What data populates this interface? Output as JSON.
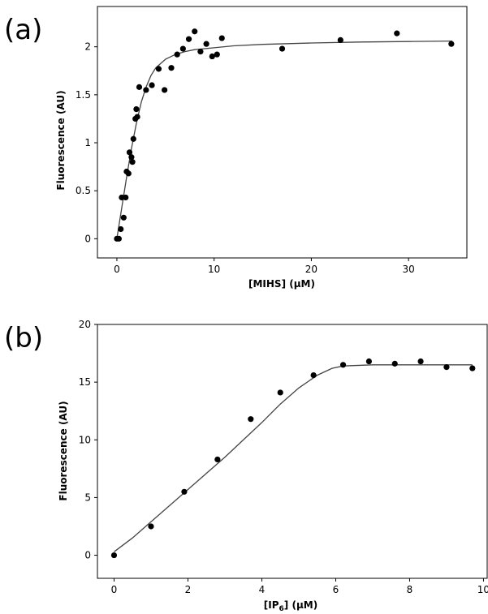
{
  "chart_data": [
    {
      "panel_label": "(a)",
      "type": "scatter",
      "xlabel": "[MIHS] (μM)",
      "ylabel": "Fluorescence (AU)",
      "xlim": [
        -2,
        36
      ],
      "ylim": [
        -0.2,
        2.42
      ],
      "xticks": [
        0,
        10,
        20,
        30
      ],
      "yticks": [
        0,
        0.5,
        1,
        1.5,
        2
      ],
      "ytick_labels": [
        "0",
        "0.5",
        "1",
        "1.5",
        "2"
      ],
      "grid": false,
      "series": [
        {
          "points": [
            [
              0,
              0
            ],
            [
              0.2,
              0
            ],
            [
              0.4,
              0.1
            ],
            [
              0.5,
              0.43
            ],
            [
              0.7,
              0.22
            ],
            [
              0.9,
              0.43
            ],
            [
              1.0,
              0.7
            ],
            [
              1.2,
              0.68
            ],
            [
              1.3,
              0.9
            ],
            [
              1.5,
              0.85
            ],
            [
              1.6,
              0.8
            ],
            [
              1.7,
              1.04
            ],
            [
              1.9,
              1.25
            ],
            [
              2.0,
              1.35
            ],
            [
              2.1,
              1.27
            ],
            [
              2.3,
              1.58
            ],
            [
              3.0,
              1.55
            ],
            [
              3.6,
              1.6
            ],
            [
              4.3,
              1.77
            ],
            [
              4.9,
              1.55
            ],
            [
              5.6,
              1.78
            ],
            [
              6.2,
              1.92
            ],
            [
              6.8,
              1.98
            ],
            [
              7.4,
              2.08
            ],
            [
              8.0,
              2.16
            ],
            [
              8.6,
              1.95
            ],
            [
              9.2,
              2.03
            ],
            [
              9.8,
              1.9
            ],
            [
              10.3,
              1.92
            ],
            [
              10.8,
              2.09
            ],
            [
              17.0,
              1.98
            ],
            [
              23.0,
              2.07
            ],
            [
              28.8,
              2.14
            ],
            [
              34.4,
              2.03
            ]
          ],
          "fit": [
            [
              0,
              0
            ],
            [
              0.5,
              0.32
            ],
            [
              1,
              0.64
            ],
            [
              1.5,
              0.94
            ],
            [
              2,
              1.2
            ],
            [
              2.5,
              1.42
            ],
            [
              3,
              1.58
            ],
            [
              3.5,
              1.7
            ],
            [
              4,
              1.78
            ],
            [
              5,
              1.87
            ],
            [
              6,
              1.92
            ],
            [
              7,
              1.95
            ],
            [
              8,
              1.97
            ],
            [
              10,
              1.99
            ],
            [
              12,
              2.01
            ],
            [
              15,
              2.025
            ],
            [
              20,
              2.04
            ],
            [
              25,
              2.05
            ],
            [
              30,
              2.055
            ],
            [
              34.5,
              2.06
            ]
          ]
        }
      ]
    },
    {
      "panel_label": "(b)",
      "type": "scatter",
      "xlabel_prefix": "[IP",
      "xlabel_sub": "6",
      "xlabel_suffix": "] (μM)",
      "ylabel": "Fluorescence (AU)",
      "xlim": [
        -0.45,
        10.1
      ],
      "ylim": [
        -2,
        20
      ],
      "xticks": [
        0,
        2,
        4,
        6,
        8,
        10
      ],
      "yticks": [
        0,
        5,
        10,
        15,
        20
      ],
      "ytick_labels": [
        "0",
        "5",
        "10",
        "15",
        "20"
      ],
      "grid": false,
      "series": [
        {
          "points": [
            [
              0,
              0
            ],
            [
              1.0,
              2.5
            ],
            [
              1.9,
              5.5
            ],
            [
              2.8,
              8.3
            ],
            [
              3.7,
              11.8
            ],
            [
              4.5,
              14.1
            ],
            [
              5.4,
              15.6
            ],
            [
              6.2,
              16.5
            ],
            [
              6.9,
              16.8
            ],
            [
              7.6,
              16.6
            ],
            [
              8.3,
              16.8
            ],
            [
              9.0,
              16.3
            ],
            [
              9.7,
              16.2
            ]
          ],
          "fit": [
            [
              0,
              0.3
            ],
            [
              0.5,
              1.5
            ],
            [
              1,
              2.9
            ],
            [
              2,
              5.7
            ],
            [
              3,
              8.5
            ],
            [
              4,
              11.5
            ],
            [
              4.5,
              13.1
            ],
            [
              5,
              14.5
            ],
            [
              5.5,
              15.6
            ],
            [
              5.9,
              16.2
            ],
            [
              6.2,
              16.4
            ],
            [
              7,
              16.5
            ],
            [
              8,
              16.5
            ],
            [
              9,
              16.5
            ],
            [
              9.7,
              16.5
            ]
          ]
        }
      ]
    }
  ]
}
